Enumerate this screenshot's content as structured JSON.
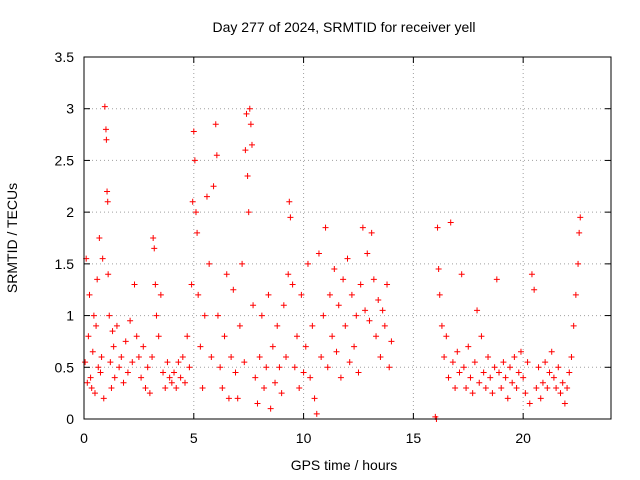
{
  "chart_data": {
    "type": "scatter",
    "title": "Day 277 of 2024, SRMTID for receiver yell",
    "xlabel": "GPS time / hours",
    "ylabel": "SRMTID / TECUs",
    "xlim": [
      0,
      24
    ],
    "ylim": [
      0,
      3.5
    ],
    "x_ticks": [
      0,
      5,
      10,
      15,
      20
    ],
    "y_ticks": [
      0,
      0.5,
      1,
      1.5,
      2,
      2.5,
      3,
      3.5
    ],
    "x_tick_labels": [
      "0",
      "5",
      "10",
      "15",
      "20"
    ],
    "y_tick_labels": [
      "0",
      "0.5",
      "1",
      "1.5",
      "2",
      "2.5",
      "3",
      "3.5"
    ],
    "grid": true,
    "marker": "+",
    "color": "#ff0000",
    "series": [
      {
        "name": "SRMTID",
        "description": "Dense scatter of '+' markers; values sampled as hourly clusters",
        "points": [
          [
            0.05,
            0.55
          ],
          [
            0.1,
            1.55
          ],
          [
            0.15,
            0.35
          ],
          [
            0.2,
            0.8
          ],
          [
            0.25,
            1.2
          ],
          [
            0.3,
            0.4
          ],
          [
            0.35,
            0.3
          ],
          [
            0.4,
            0.65
          ],
          [
            0.45,
            1.0
          ],
          [
            0.5,
            0.25
          ],
          [
            0.55,
            0.9
          ],
          [
            0.6,
            1.35
          ],
          [
            0.65,
            0.5
          ],
          [
            0.7,
            1.75
          ],
          [
            0.75,
            0.45
          ],
          [
            0.8,
            0.6
          ],
          [
            0.85,
            1.55
          ],
          [
            0.9,
            0.2
          ],
          [
            0.95,
            3.02
          ],
          [
            1.0,
            2.8
          ],
          [
            1.02,
            2.7
          ],
          [
            1.05,
            2.2
          ],
          [
            1.08,
            2.1
          ],
          [
            1.1,
            1.4
          ],
          [
            1.15,
            1.0
          ],
          [
            1.2,
            0.55
          ],
          [
            1.25,
            0.3
          ],
          [
            1.3,
            0.85
          ],
          [
            1.35,
            0.7
          ],
          [
            1.4,
            0.4
          ],
          [
            1.5,
            0.9
          ],
          [
            1.6,
            0.5
          ],
          [
            1.7,
            0.6
          ],
          [
            1.8,
            0.35
          ],
          [
            1.9,
            0.75
          ],
          [
            2.0,
            0.45
          ],
          [
            2.1,
            0.95
          ],
          [
            2.2,
            0.55
          ],
          [
            2.3,
            1.3
          ],
          [
            2.4,
            0.8
          ],
          [
            2.5,
            0.6
          ],
          [
            2.6,
            0.4
          ],
          [
            2.7,
            0.7
          ],
          [
            2.8,
            0.3
          ],
          [
            2.9,
            0.5
          ],
          [
            3.0,
            0.25
          ],
          [
            3.1,
            0.6
          ],
          [
            3.15,
            1.75
          ],
          [
            3.2,
            1.65
          ],
          [
            3.25,
            1.3
          ],
          [
            3.3,
            1.0
          ],
          [
            3.4,
            0.8
          ],
          [
            3.5,
            1.2
          ],
          [
            3.6,
            0.45
          ],
          [
            3.7,
            0.3
          ],
          [
            3.8,
            0.55
          ],
          [
            3.9,
            0.4
          ],
          [
            4.0,
            0.35
          ],
          [
            4.1,
            0.45
          ],
          [
            4.2,
            0.3
          ],
          [
            4.3,
            0.55
          ],
          [
            4.4,
            0.4
          ],
          [
            4.5,
            0.6
          ],
          [
            4.6,
            0.35
          ],
          [
            4.7,
            0.8
          ],
          [
            4.8,
            0.5
          ],
          [
            4.9,
            1.3
          ],
          [
            4.95,
            2.1
          ],
          [
            5.0,
            2.78
          ],
          [
            5.05,
            2.5
          ],
          [
            5.1,
            2.0
          ],
          [
            5.15,
            1.8
          ],
          [
            5.2,
            1.2
          ],
          [
            5.3,
            0.7
          ],
          [
            5.4,
            0.3
          ],
          [
            5.5,
            1.0
          ],
          [
            5.6,
            2.15
          ],
          [
            5.7,
            1.5
          ],
          [
            5.8,
            0.6
          ],
          [
            5.9,
            2.25
          ],
          [
            6.0,
            2.85
          ],
          [
            6.05,
            2.55
          ],
          [
            6.1,
            1.0
          ],
          [
            6.2,
            0.5
          ],
          [
            6.3,
            0.3
          ],
          [
            6.4,
            0.8
          ],
          [
            6.5,
            1.4
          ],
          [
            6.6,
            0.2
          ],
          [
            6.7,
            0.6
          ],
          [
            6.8,
            1.25
          ],
          [
            6.9,
            0.45
          ],
          [
            7.0,
            0.2
          ],
          [
            7.1,
            0.9
          ],
          [
            7.2,
            1.5
          ],
          [
            7.3,
            0.55
          ],
          [
            7.35,
            2.6
          ],
          [
            7.4,
            2.95
          ],
          [
            7.45,
            2.35
          ],
          [
            7.5,
            2.0
          ],
          [
            7.55,
            3.0
          ],
          [
            7.6,
            2.85
          ],
          [
            7.65,
            2.65
          ],
          [
            7.7,
            1.1
          ],
          [
            7.8,
            0.4
          ],
          [
            7.9,
            0.15
          ],
          [
            8.0,
            0.6
          ],
          [
            8.1,
            1.0
          ],
          [
            8.2,
            0.3
          ],
          [
            8.3,
            0.5
          ],
          [
            8.4,
            1.2
          ],
          [
            8.5,
            0.1
          ],
          [
            8.6,
            0.7
          ],
          [
            8.7,
            0.35
          ],
          [
            8.8,
            0.9
          ],
          [
            8.9,
            0.5
          ],
          [
            9.0,
            0.25
          ],
          [
            9.1,
            1.1
          ],
          [
            9.2,
            0.6
          ],
          [
            9.3,
            1.4
          ],
          [
            9.35,
            2.1
          ],
          [
            9.4,
            1.95
          ],
          [
            9.5,
            1.3
          ],
          [
            9.6,
            0.5
          ],
          [
            9.7,
            0.8
          ],
          [
            9.8,
            0.3
          ],
          [
            9.9,
            1.2
          ],
          [
            10.0,
            0.45
          ],
          [
            10.1,
            0.7
          ],
          [
            10.2,
            1.5
          ],
          [
            10.3,
            0.4
          ],
          [
            10.4,
            0.9
          ],
          [
            10.5,
            0.2
          ],
          [
            10.6,
            0.05
          ],
          [
            10.7,
            1.6
          ],
          [
            10.8,
            0.6
          ],
          [
            10.9,
            1.0
          ],
          [
            11.0,
            1.85
          ],
          [
            11.1,
            0.5
          ],
          [
            11.2,
            1.2
          ],
          [
            11.3,
            0.8
          ],
          [
            11.4,
            1.45
          ],
          [
            11.5,
            0.65
          ],
          [
            11.6,
            1.1
          ],
          [
            11.7,
            0.4
          ],
          [
            11.8,
            1.35
          ],
          [
            11.9,
            0.9
          ],
          [
            12.0,
            1.55
          ],
          [
            12.1,
            0.55
          ],
          [
            12.2,
            1.2
          ],
          [
            12.3,
            0.7
          ],
          [
            12.4,
            1.0
          ],
          [
            12.5,
            0.45
          ],
          [
            12.6,
            1.3
          ],
          [
            12.7,
            1.85
          ],
          [
            12.8,
            1.05
          ],
          [
            12.9,
            1.6
          ],
          [
            13.0,
            0.95
          ],
          [
            13.1,
            1.8
          ],
          [
            13.2,
            1.35
          ],
          [
            13.3,
            0.8
          ],
          [
            13.4,
            1.15
          ],
          [
            13.5,
            0.6
          ],
          [
            13.6,
            1.05
          ],
          [
            13.7,
            0.9
          ],
          [
            13.8,
            1.3
          ],
          [
            13.9,
            0.5
          ],
          [
            14.0,
            0.75
          ],
          [
            16.0,
            0.02
          ],
          [
            16.05,
            0.0
          ],
          [
            16.1,
            1.85
          ],
          [
            16.15,
            1.45
          ],
          [
            16.2,
            1.2
          ],
          [
            16.3,
            0.9
          ],
          [
            16.4,
            0.6
          ],
          [
            16.5,
            0.8
          ],
          [
            16.6,
            0.4
          ],
          [
            16.7,
            1.9
          ],
          [
            16.8,
            0.55
          ],
          [
            16.9,
            0.3
          ],
          [
            17.0,
            0.65
          ],
          [
            17.1,
            0.45
          ],
          [
            17.2,
            1.4
          ],
          [
            17.3,
            0.5
          ],
          [
            17.4,
            0.3
          ],
          [
            17.5,
            0.7
          ],
          [
            17.6,
            0.4
          ],
          [
            17.7,
            0.25
          ],
          [
            17.8,
            0.55
          ],
          [
            17.9,
            1.05
          ],
          [
            18.0,
            0.35
          ],
          [
            18.1,
            0.8
          ],
          [
            18.2,
            0.45
          ],
          [
            18.3,
            0.3
          ],
          [
            18.4,
            0.6
          ],
          [
            18.5,
            0.4
          ],
          [
            18.6,
            0.25
          ],
          [
            18.7,
            0.5
          ],
          [
            18.8,
            1.35
          ],
          [
            18.9,
            0.45
          ],
          [
            19.0,
            0.3
          ],
          [
            19.1,
            0.55
          ],
          [
            19.2,
            0.4
          ],
          [
            19.3,
            0.2
          ],
          [
            19.4,
            0.5
          ],
          [
            19.5,
            0.35
          ],
          [
            19.6,
            0.6
          ],
          [
            19.7,
            0.3
          ],
          [
            19.8,
            0.45
          ],
          [
            19.9,
            0.65
          ],
          [
            20.0,
            0.4
          ],
          [
            20.1,
            0.25
          ],
          [
            20.2,
            0.55
          ],
          [
            20.3,
            0.15
          ],
          [
            20.4,
            1.4
          ],
          [
            20.5,
            1.25
          ],
          [
            20.6,
            0.3
          ],
          [
            20.7,
            0.5
          ],
          [
            20.8,
            0.2
          ],
          [
            20.9,
            0.35
          ],
          [
            21.0,
            0.55
          ],
          [
            21.1,
            0.3
          ],
          [
            21.2,
            0.45
          ],
          [
            21.3,
            0.65
          ],
          [
            21.4,
            0.4
          ],
          [
            21.5,
            0.3
          ],
          [
            21.6,
            0.5
          ],
          [
            21.7,
            0.25
          ],
          [
            21.8,
            0.35
          ],
          [
            21.9,
            0.15
          ],
          [
            22.0,
            0.3
          ],
          [
            22.1,
            0.45
          ],
          [
            22.2,
            0.6
          ],
          [
            22.3,
            0.9
          ],
          [
            22.4,
            1.2
          ],
          [
            22.5,
            1.5
          ],
          [
            22.55,
            1.8
          ],
          [
            22.6,
            1.95
          ]
        ]
      }
    ]
  }
}
